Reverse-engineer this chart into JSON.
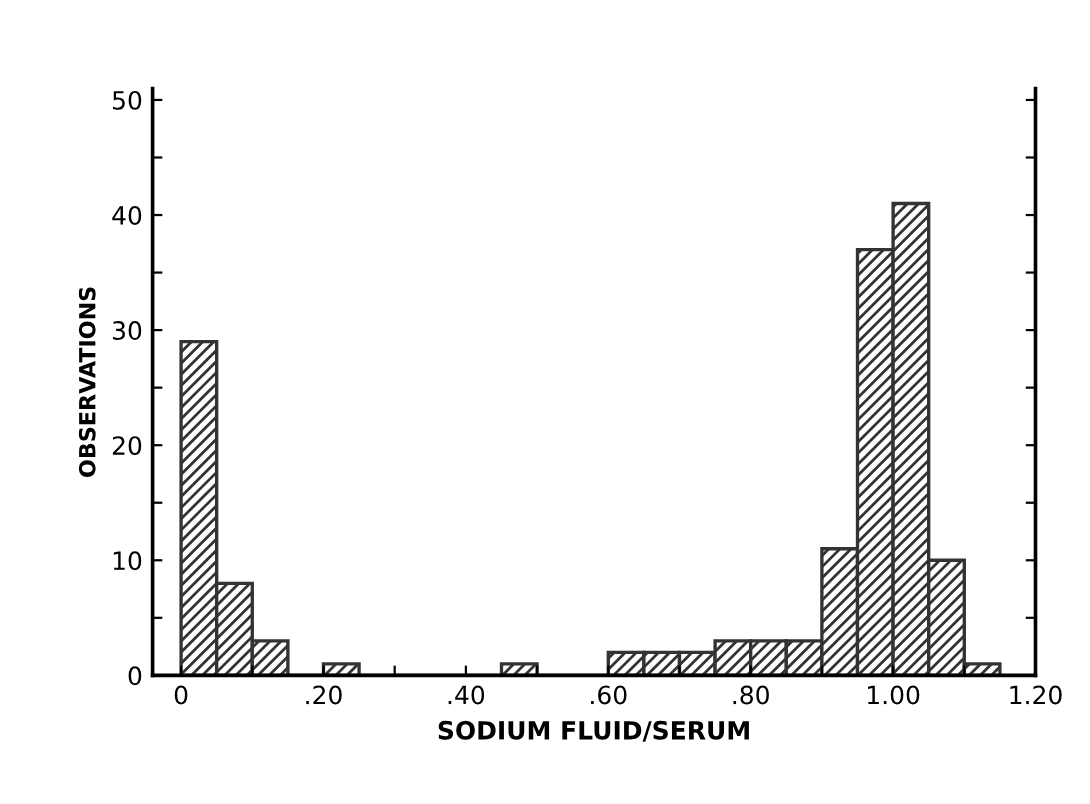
{
  "chart_data": {
    "type": "histogram",
    "xlabel": "SODIUM FLUID/SERUM",
    "ylabel": "OBSERVATIONS",
    "bins": [
      0,
      0.05,
      0.1,
      0.15,
      0.2,
      0.25,
      0.3,
      0.35,
      0.4,
      0.45,
      0.5,
      0.55,
      0.6,
      0.65,
      0.7,
      0.75,
      0.8,
      0.85,
      0.9,
      0.95,
      1.0,
      1.05,
      1.1,
      1.15
    ],
    "values": [
      29,
      8,
      3,
      0,
      1,
      0,
      0,
      0,
      0,
      1,
      0,
      0,
      2,
      2,
      2,
      3,
      3,
      3,
      11,
      37,
      41,
      10,
      1
    ],
    "color": "#333333",
    "xlim": [
      -0.04,
      1.2
    ],
    "ylim": [
      0,
      51
    ],
    "xticks": [
      0,
      {
        "value": 0.1,
        "label": null
      },
      {
        "value": 0.2,
        "label": ".20"
      },
      {
        "value": 0.3,
        "label": null
      },
      {
        "value": 0.4,
        "label": ".40"
      },
      {
        "value": 0.5,
        "label": null
      },
      {
        "value": 0.6,
        "label": ".60"
      },
      {
        "value": 0.7,
        "label": null
      },
      {
        "value": 0.8,
        "label": ".80"
      },
      {
        "value": 0.9,
        "label": null
      },
      {
        "value": 1.0,
        "label": "1.00"
      },
      {
        "value": 1.1,
        "label": null
      },
      {
        "value": 1.2,
        "label": "1.20"
      }
    ],
    "yticks": [
      0,
      {
        "value": 5,
        "label": null
      },
      10,
      {
        "value": 15,
        "label": null
      },
      20,
      {
        "value": 25,
        "label": null
      },
      30,
      {
        "value": 35,
        "label": null
      },
      40,
      {
        "value": 45,
        "label": null
      },
      50
    ],
    "grid": false
  }
}
